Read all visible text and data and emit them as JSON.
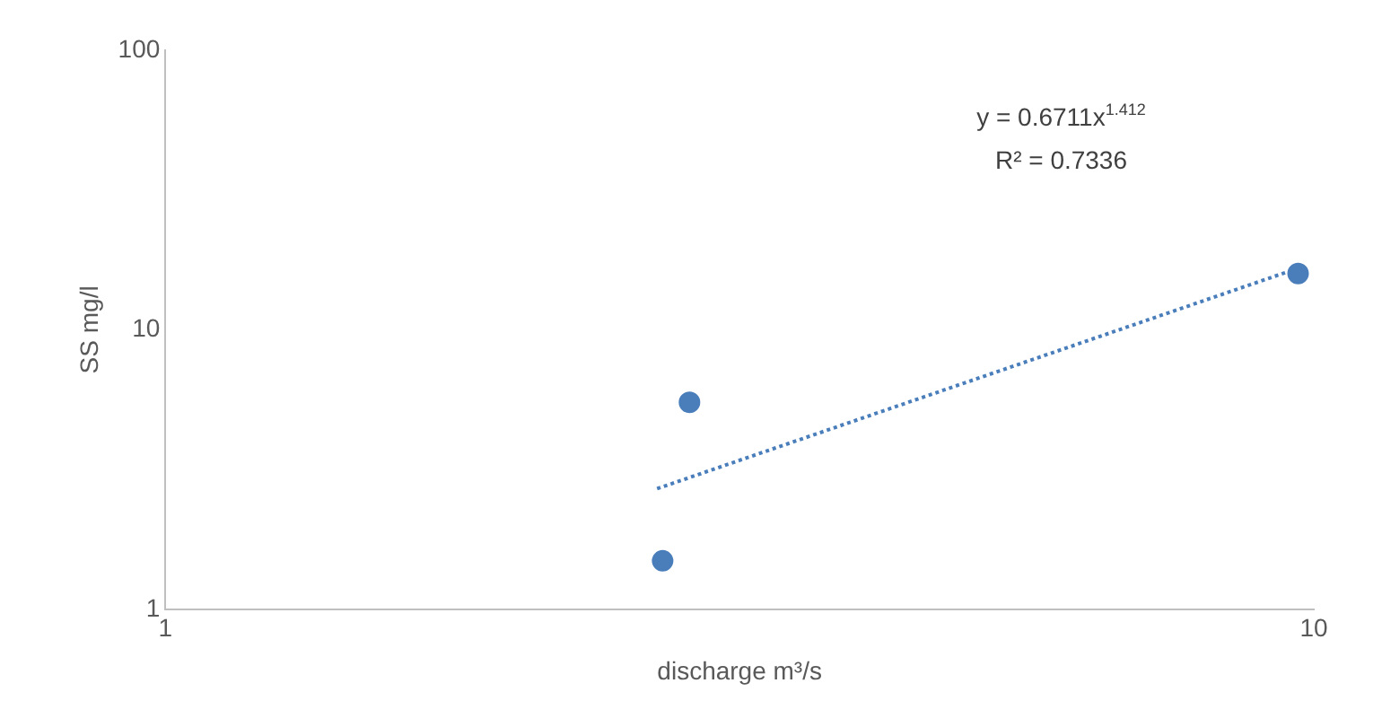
{
  "chart_data": {
    "type": "scatter",
    "xlabel": "discharge m³/s",
    "ylabel": "SS mg/l",
    "log": "xy",
    "xlim": [
      1,
      10
    ],
    "xticks": [
      1,
      10
    ],
    "ylim": [
      1,
      100
    ],
    "yticks": [
      1,
      10,
      100
    ],
    "legend": false,
    "marker": "circle",
    "series": [
      {
        "color": "#4a7ebb",
        "x": [
          2.71,
          2.86,
          9.69
        ],
        "values": [
          1.49,
          5.5,
          15.9
        ]
      },
      {
        "type": "line",
        "color": "#4a7ebb",
        "marker": "none",
        "line_style": "dotted",
        "x": [
          2.68,
          9.69
        ],
        "values": [
          2.7,
          16.6
        ]
      }
    ],
    "annotations": [
      "y = 0.6711x$^{1.412}$",
      "R² = 0.7336"
    ]
  }
}
